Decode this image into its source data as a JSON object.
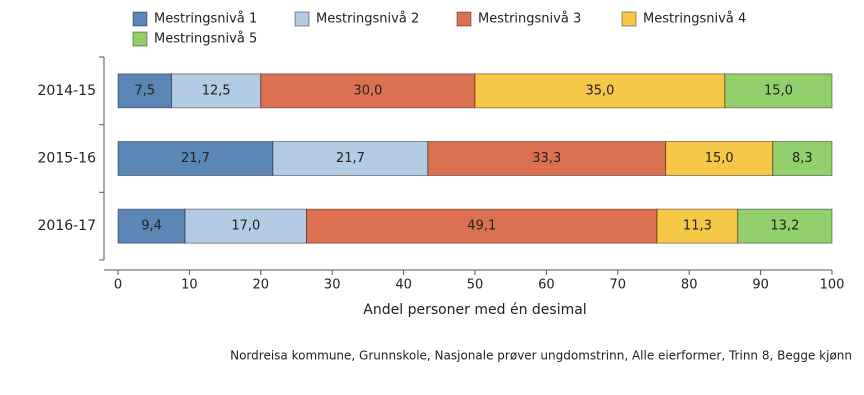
{
  "chart_data": {
    "type": "stacked_barh",
    "categories": [
      "2014-15",
      "2015-16",
      "2016-17"
    ],
    "series": [
      {
        "name": "Mestringsnivå 1",
        "color": "#5b86b5",
        "values": [
          7.5,
          21.7,
          9.4
        ],
        "value_labels": [
          "7,5",
          "21,7",
          "9,4"
        ]
      },
      {
        "name": "Mestringsnivå 2",
        "color": "#b3cbe3",
        "values": [
          12.5,
          21.7,
          17.0
        ],
        "value_labels": [
          "12,5",
          "21,7",
          "17,0"
        ]
      },
      {
        "name": "Mestringsnivå 3",
        "color": "#dc7152",
        "values": [
          30.0,
          33.3,
          49.1
        ],
        "value_labels": [
          "30,0",
          "33,3",
          "49,1"
        ]
      },
      {
        "name": "Mestringsnivå 4",
        "color": "#f7c748",
        "values": [
          35.0,
          15.0,
          11.3
        ],
        "value_labels": [
          "35,0",
          "15,0",
          "11,3"
        ]
      },
      {
        "name": "Mestringsnivå 5",
        "color": "#93cf6c",
        "values": [
          15.0,
          8.3,
          13.2
        ],
        "value_labels": [
          "15,0",
          "8,3",
          "13,2"
        ]
      }
    ],
    "xlim": [
      0,
      100
    ],
    "xticks": [
      0,
      10,
      20,
      30,
      40,
      50,
      60,
      70,
      80,
      90,
      100
    ],
    "xlabel": "Andel personer med én desimal",
    "note": "Nordreisa kommune, Grunnskole, Nasjonale prøver ungdomstrinn, Alle eierformer, Trinn 8, Begge kjønn"
  }
}
